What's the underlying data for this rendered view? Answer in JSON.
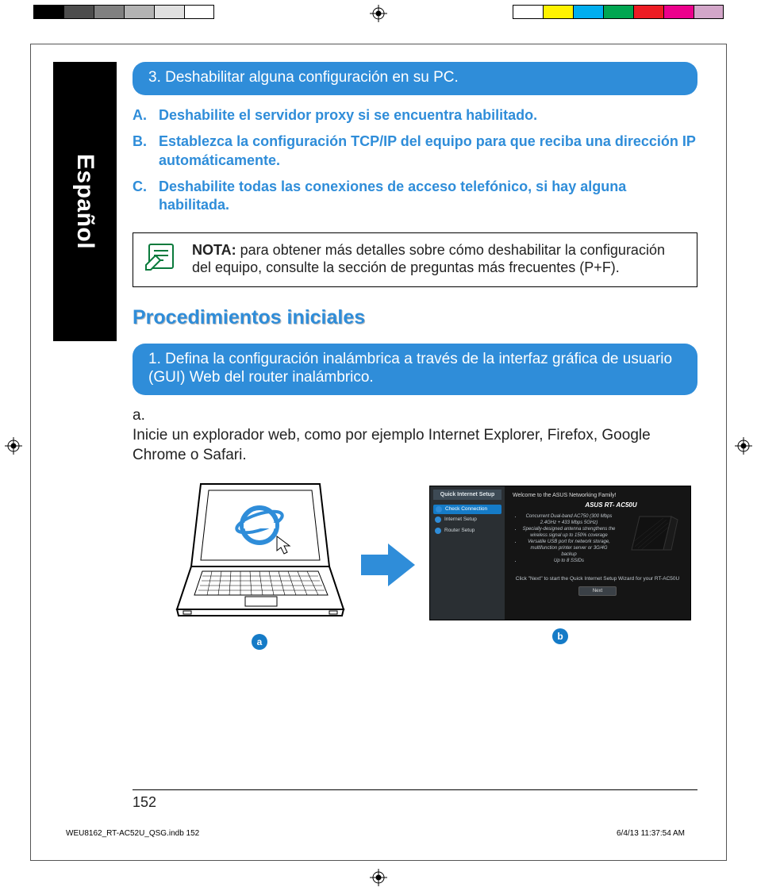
{
  "registration_colors_left": [
    "#000000",
    "#4d4d4d",
    "#808080",
    "#b3b3b3",
    "#e0e0e0",
    "#ffffff"
  ],
  "registration_colors_right": [
    "#ffffff",
    "#fff200",
    "#00aeef",
    "#00a651",
    "#ed1c24",
    "#ec008c",
    "#d3a6c9"
  ],
  "tab_label": "Español",
  "bar1": "3.  Deshabilitar alguna configuración en su PC.",
  "sub_a_lead": "A.",
  "sub_a": "Deshabilite el servidor proxy si se encuentra habilitado.",
  "sub_b_lead": "B.",
  "sub_b": "Establezca la configuración TCP/IP del equipo para que reciba una dirección IP automáticamente.",
  "sub_c_lead": "C.",
  "sub_c": "Deshabilite todas las conexiones de acceso telefónico, si hay alguna habilitada.",
  "note_label": "NOTA:",
  "note_body": " para obtener más detalles sobre cómo deshabilitar la configuración del equipo, consulte la sección de preguntas más frecuentes (P+F).",
  "section_head": "Procedimientos iniciales",
  "bar2": "1.  Defina la configuración inalámbrica a través de la interfaz gráfica de usuario (GUI) Web del router inalámbrico.",
  "step_a_lead": "a.",
  "step_a": "Inicie un explorador web, como por ejemplo Internet Explorer, Firefox, Google Chrome o Safari.",
  "label_a": "a",
  "label_b": "b",
  "screenshot": {
    "side_header": "Quick Internet Setup",
    "side_items": [
      "Check Connection",
      "Internet Setup",
      "Router Setup"
    ],
    "welcome": "Welcome to the ASUS Networking Family!",
    "model": "ASUS RT- AC50U",
    "bullets": [
      "Concurrent Dual-band AC750 (300 Mbps 2.4GHz + 433 Mbps 5GHz)",
      "Specially-designed antenna strengthens the wireless signal up to 150% coverage",
      "Versatile USB port for network storage, multifunction printer server or 3G/4G backup",
      "Up to 8 SSIDs"
    ],
    "hint": "Click \"Next\" to start the Quick Internet Setup Wizard for your RT-AC50U",
    "next": "Next"
  },
  "page_number": "152",
  "footer_file": "WEU8162_RT-AC52U_QSG.indb   152",
  "footer_ts": "6/4/13   11:37:54 AM",
  "colors": {
    "blue": "#2f8dd9",
    "badge": "#157bc7",
    "ie_blue": "#2f8dd9"
  }
}
